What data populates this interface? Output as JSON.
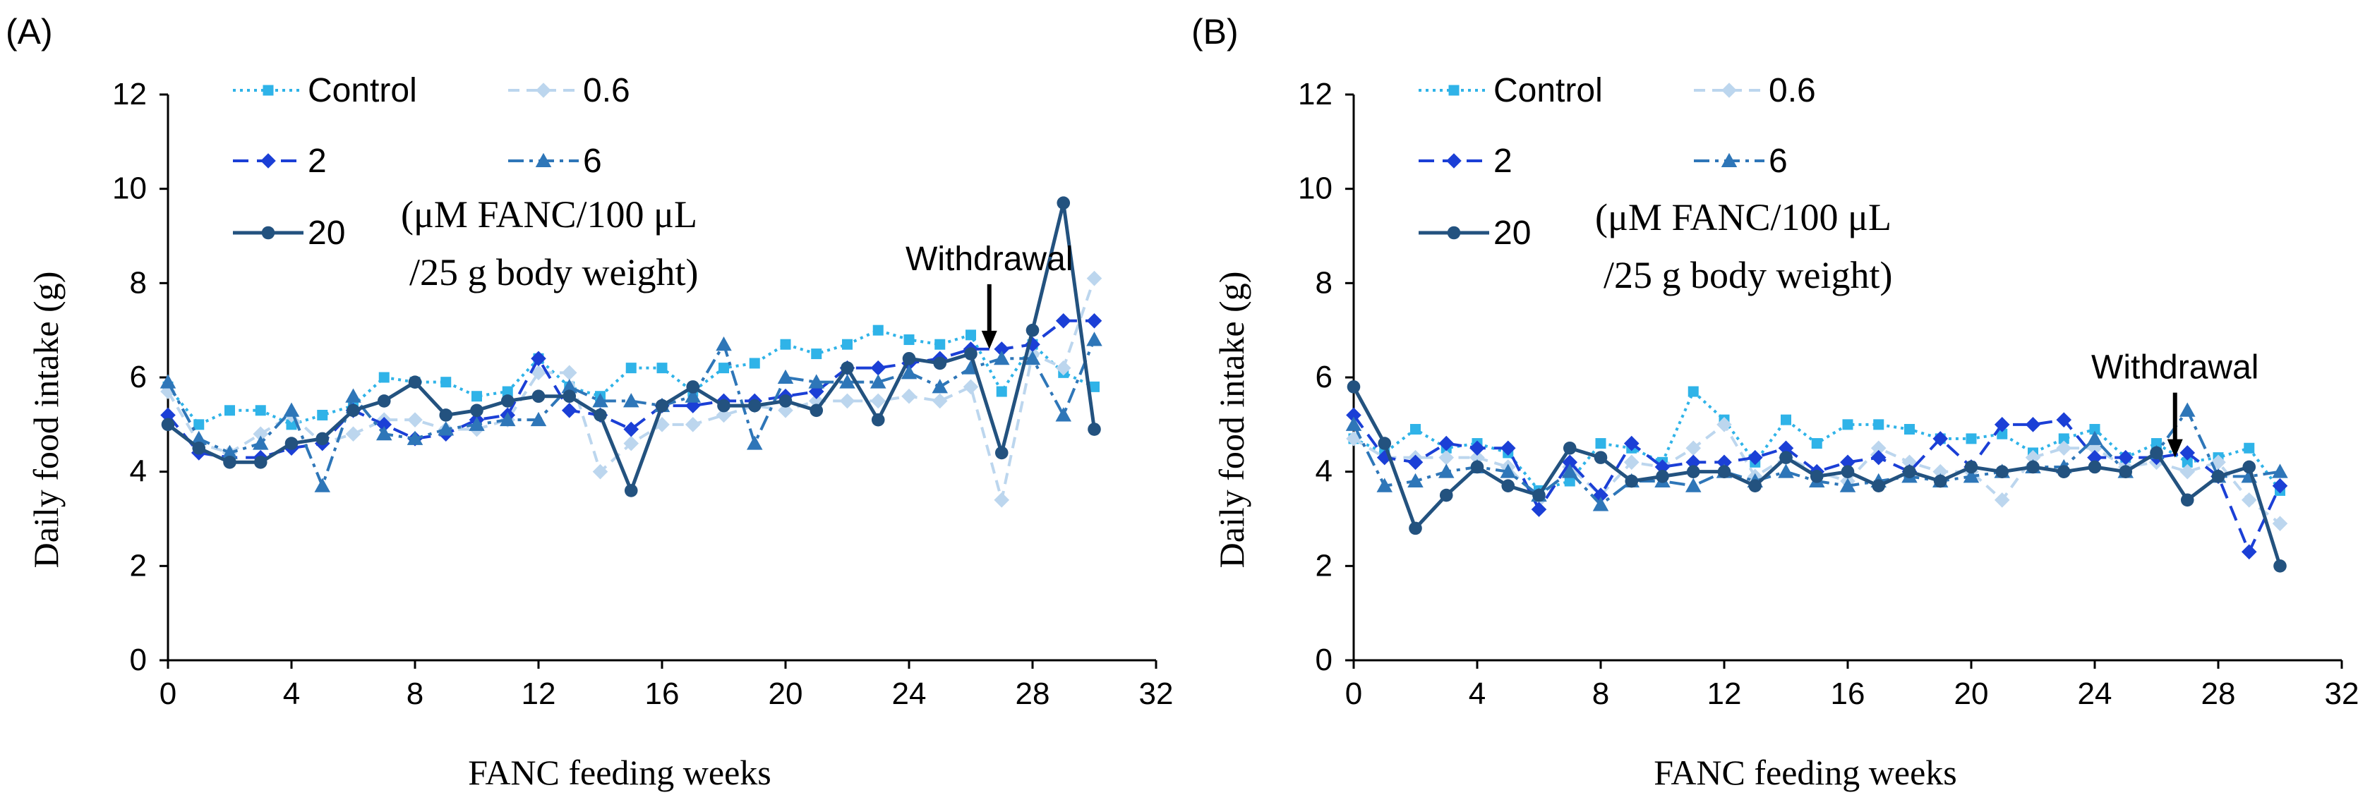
{
  "colors": {
    "control": "#2fb3e8",
    "c0_6": "#bcd6ee",
    "c2": "#1b3fd6",
    "c6": "#2e76b8",
    "c20": "#23527f",
    "axis": "#000000",
    "text": "#000000"
  },
  "chart_data": [
    {
      "type": "line",
      "panel_label": "(A)",
      "title": "",
      "xlabel": "FANC feeding weeks",
      "ylabel": "Daily food intake (g)",
      "xlim": [
        0,
        32
      ],
      "ylim": [
        0,
        12
      ],
      "x_ticks": [
        "0",
        "4",
        "8",
        "12",
        "16",
        "20",
        "24",
        "28",
        "32"
      ],
      "y_ticks": [
        "0",
        "2",
        "4",
        "6",
        "8",
        "10",
        "12"
      ],
      "x": [
        0,
        1,
        2,
        3,
        4,
        5,
        6,
        7,
        8,
        9,
        10,
        11,
        12,
        13,
        14,
        15,
        16,
        17,
        18,
        19,
        20,
        21,
        22,
        23,
        24,
        25,
        26,
        27,
        28,
        29,
        30
      ],
      "legend_note": [
        "(μM FANC/100 μL",
        "/25 g body weight)"
      ],
      "annotation": {
        "text": "Withdrawal",
        "x": 26.6,
        "y": 6.6
      },
      "series": [
        {
          "name": "Control",
          "color": "control",
          "marker": "square",
          "dash": "dot",
          "values": [
            5.8,
            5.0,
            5.3,
            5.3,
            5.0,
            5.2,
            5.4,
            6.0,
            5.9,
            5.9,
            5.6,
            5.7,
            6.4,
            5.8,
            5.6,
            6.2,
            6.2,
            5.7,
            6.2,
            6.3,
            6.7,
            6.5,
            6.7,
            7.0,
            6.8,
            6.7,
            6.9,
            5.7,
            6.7,
            6.1,
            5.8
          ]
        },
        {
          "name": "0.6",
          "color": "c0_6",
          "marker": "diamond",
          "dash": "dash",
          "values": [
            5.7,
            4.6,
            4.4,
            4.8,
            5.2,
            4.6,
            4.8,
            5.1,
            5.1,
            4.9,
            4.9,
            5.1,
            6.1,
            6.1,
            4.0,
            4.6,
            5.0,
            5.0,
            5.2,
            5.4,
            5.3,
            5.5,
            5.5,
            5.5,
            5.6,
            5.5,
            5.8,
            3.4,
            6.5,
            6.2,
            8.1
          ]
        },
        {
          "name": "2",
          "color": "c2",
          "marker": "diamond",
          "dash": "longdash",
          "values": [
            5.2,
            4.4,
            4.3,
            4.3,
            4.5,
            4.6,
            5.3,
            5.0,
            4.7,
            4.8,
            5.1,
            5.2,
            6.4,
            5.3,
            5.2,
            4.9,
            5.4,
            5.4,
            5.5,
            5.5,
            5.6,
            5.7,
            6.2,
            6.2,
            6.3,
            6.4,
            6.6,
            6.6,
            6.7,
            7.2,
            7.2
          ]
        },
        {
          "name": "6",
          "color": "c6",
          "marker": "triangle",
          "dash": "dashdot",
          "values": [
            5.9,
            4.7,
            4.4,
            4.6,
            5.3,
            3.7,
            5.6,
            4.8,
            4.7,
            4.9,
            5.0,
            5.1,
            5.1,
            5.8,
            5.5,
            5.5,
            5.4,
            5.6,
            6.7,
            4.6,
            6.0,
            5.9,
            5.9,
            5.9,
            6.1,
            5.8,
            6.2,
            6.4,
            6.4,
            5.2,
            6.8
          ]
        },
        {
          "name": "20",
          "color": "c20",
          "marker": "circle",
          "dash": "solid",
          "values": [
            5.0,
            4.5,
            4.2,
            4.2,
            4.6,
            4.7,
            5.3,
            5.5,
            5.9,
            5.2,
            5.3,
            5.5,
            5.6,
            5.6,
            5.2,
            3.6,
            5.4,
            5.8,
            5.4,
            5.4,
            5.5,
            5.3,
            6.2,
            5.1,
            6.4,
            6.3,
            6.5,
            4.4,
            7.0,
            9.7,
            4.9
          ]
        }
      ],
      "legend": [
        "Control",
        "0.6",
        "2",
        "6",
        "20"
      ]
    },
    {
      "type": "line",
      "panel_label": "(B)",
      "title": "",
      "xlabel": "FANC feeding weeks",
      "ylabel": "Daily food intake (g)",
      "xlim": [
        0,
        32
      ],
      "ylim": [
        0,
        12
      ],
      "x_ticks": [
        "0",
        "4",
        "8",
        "12",
        "16",
        "20",
        "24",
        "28",
        "32"
      ],
      "y_ticks": [
        "0",
        "2",
        "4",
        "6",
        "8",
        "10",
        "12"
      ],
      "x": [
        0,
        1,
        2,
        3,
        4,
        5,
        6,
        7,
        8,
        9,
        10,
        11,
        12,
        13,
        14,
        15,
        16,
        17,
        18,
        19,
        20,
        21,
        22,
        23,
        24,
        25,
        26,
        27,
        28,
        29,
        30
      ],
      "legend_note": [
        "(μM FANC/100 μL",
        "/25 g body weight)"
      ],
      "annotation": {
        "text": "Withdrawal",
        "x": 26.6,
        "y": 4.3
      },
      "series": [
        {
          "name": "Control",
          "color": "control",
          "marker": "square",
          "dash": "dot",
          "values": [
            4.7,
            4.4,
            4.9,
            4.5,
            4.6,
            4.4,
            3.6,
            3.8,
            4.6,
            4.5,
            4.2,
            5.7,
            5.1,
            4.2,
            5.1,
            4.6,
            5.0,
            5.0,
            4.9,
            4.7,
            4.7,
            4.8,
            4.4,
            4.7,
            4.9,
            4.3,
            4.6,
            4.2,
            4.3,
            4.5,
            3.6
          ]
        },
        {
          "name": "0.6",
          "color": "c0_6",
          "marker": "diamond",
          "dash": "dash",
          "values": [
            4.7,
            4.3,
            4.3,
            4.3,
            4.3,
            4.1,
            3.4,
            4.1,
            3.5,
            4.2,
            4.1,
            4.5,
            5.0,
            3.9,
            4.3,
            4.0,
            3.8,
            4.5,
            4.2,
            4.0,
            4.0,
            3.4,
            4.3,
            4.5,
            4.5,
            4.1,
            4.2,
            4.0,
            4.2,
            3.4,
            2.9
          ]
        },
        {
          "name": "2",
          "color": "c2",
          "marker": "diamond",
          "dash": "longdash",
          "values": [
            5.2,
            4.3,
            4.2,
            4.6,
            4.5,
            4.5,
            3.2,
            4.2,
            3.5,
            4.6,
            4.1,
            4.2,
            4.2,
            4.3,
            4.5,
            4.0,
            4.2,
            4.3,
            4.0,
            4.7,
            4.1,
            5.0,
            5.0,
            5.1,
            4.3,
            4.3,
            4.3,
            4.4,
            3.9,
            2.3,
            3.7
          ]
        },
        {
          "name": "6",
          "color": "c6",
          "marker": "triangle",
          "dash": "dashdot",
          "values": [
            5.0,
            3.7,
            3.8,
            4.0,
            4.1,
            4.0,
            3.5,
            4.0,
            3.3,
            3.8,
            3.8,
            3.7,
            4.0,
            3.8,
            4.0,
            3.8,
            3.7,
            3.8,
            3.9,
            3.8,
            3.9,
            4.0,
            4.1,
            4.1,
            4.7,
            4.0,
            4.4,
            5.3,
            3.9,
            3.9,
            4.0
          ]
        },
        {
          "name": "20",
          "color": "c20",
          "marker": "circle",
          "dash": "solid",
          "values": [
            5.8,
            4.6,
            2.8,
            3.5,
            4.1,
            3.7,
            3.5,
            4.5,
            4.3,
            3.8,
            3.9,
            4.0,
            4.0,
            3.7,
            4.3,
            3.9,
            4.0,
            3.7,
            4.0,
            3.8,
            4.1,
            4.0,
            4.1,
            4.0,
            4.1,
            4.0,
            4.4,
            3.4,
            3.9,
            4.1,
            2.0
          ]
        }
      ],
      "legend": [
        "Control",
        "0.6",
        "2",
        "6",
        "20"
      ]
    }
  ]
}
